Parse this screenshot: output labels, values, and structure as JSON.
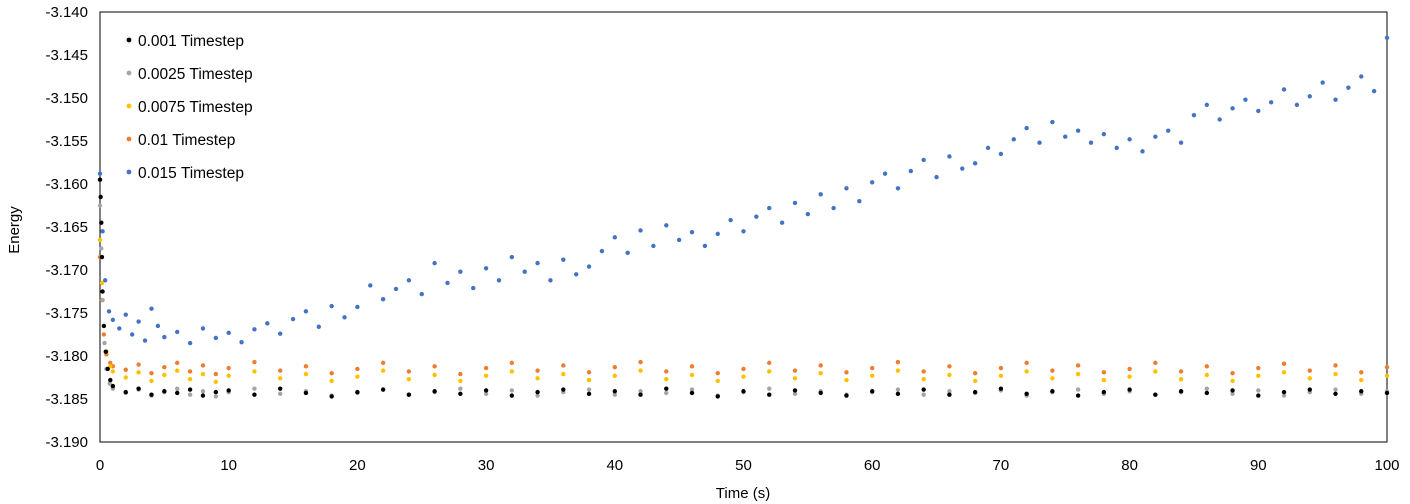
{
  "chart_data": {
    "type": "scatter",
    "title": "",
    "xlabel": "Time (s)",
    "ylabel": "Energy",
    "xlim": [
      0,
      100
    ],
    "ylim": [
      -3.19,
      -3.14
    ],
    "x_ticks": [
      0,
      10,
      20,
      30,
      40,
      50,
      60,
      70,
      80,
      90,
      100
    ],
    "x_tick_labels": [
      "0",
      "10",
      "20",
      "30",
      "40",
      "50",
      "60",
      "70",
      "80",
      "90",
      "100"
    ],
    "y_ticks": [
      -3.14,
      -3.145,
      -3.15,
      -3.155,
      -3.16,
      -3.165,
      -3.17,
      -3.175,
      -3.18,
      -3.185,
      -3.19
    ],
    "y_tick_labels": [
      "-3.140",
      "-3.145",
      "-3.150",
      "-3.155",
      "-3.160",
      "-3.165",
      "-3.170",
      "-3.175",
      "-3.180",
      "-3.185",
      "-3.190"
    ],
    "grid": false,
    "legend_position": "top-left",
    "series": [
      {
        "name": "0.001 Timestep",
        "color": "#000000",
        "x": [
          0,
          0.05,
          0.1,
          0.15,
          0.2,
          0.3,
          0.45,
          0.6,
          0.8,
          1,
          2,
          3,
          4,
          5,
          6,
          7,
          8,
          9,
          10,
          12,
          14,
          16,
          18,
          20,
          22,
          24,
          26,
          28,
          30,
          32,
          34,
          36,
          38,
          40,
          42,
          44,
          46,
          48,
          50,
          52,
          54,
          56,
          58,
          60,
          62,
          64,
          66,
          68,
          70,
          72,
          74,
          76,
          78,
          80,
          82,
          84,
          86,
          88,
          90,
          92,
          94,
          96,
          98,
          100
        ],
        "y": [
          -3.1595,
          -3.1615,
          -3.1645,
          -3.1685,
          -3.1725,
          -3.1765,
          -3.1795,
          -3.1815,
          -3.1828,
          -3.1835,
          -3.1842,
          -3.1838,
          -3.1845,
          -3.1841,
          -3.1843,
          -3.1839,
          -3.1846,
          -3.1842,
          -3.184,
          -3.1845,
          -3.1838,
          -3.1843,
          -3.1847,
          -3.1842,
          -3.1839,
          -3.1845,
          -3.1841,
          -3.1844,
          -3.184,
          -3.1846,
          -3.1842,
          -3.1839,
          -3.1844,
          -3.1841,
          -3.1845,
          -3.1838,
          -3.1843,
          -3.1847,
          -3.1841,
          -3.1845,
          -3.184,
          -3.1843,
          -3.1846,
          -3.1841,
          -3.1844,
          -3.1839,
          -3.1845,
          -3.1842,
          -3.1838,
          -3.1844,
          -3.1841,
          -3.1846,
          -3.1842,
          -3.1839,
          -3.1845,
          -3.1841,
          -3.1843,
          -3.184,
          -3.1846,
          -3.1842,
          -3.1839,
          -3.1844,
          -3.1841,
          -3.1843
        ]
      },
      {
        "name": "0.0025 Timestep",
        "color": "#A5A5A5",
        "x": [
          0,
          0.1,
          0.2,
          0.35,
          0.5,
          0.75,
          1,
          2,
          3,
          4,
          5,
          6,
          7,
          8,
          9,
          10,
          12,
          14,
          16,
          18,
          20,
          22,
          24,
          26,
          28,
          30,
          32,
          34,
          36,
          38,
          40,
          42,
          44,
          46,
          48,
          50,
          52,
          54,
          56,
          58,
          60,
          62,
          64,
          66,
          68,
          70,
          72,
          74,
          76,
          78,
          80,
          82,
          84,
          86,
          88,
          90,
          92,
          94,
          96,
          98,
          100
        ],
        "y": [
          -3.1625,
          -3.1675,
          -3.1735,
          -3.1785,
          -3.1815,
          -3.1832,
          -3.1838,
          -3.1843,
          -3.1839,
          -3.1846,
          -3.1842,
          -3.1838,
          -3.1845,
          -3.1841,
          -3.1847,
          -3.1842,
          -3.1838,
          -3.1844,
          -3.1841,
          -3.1846,
          -3.1843,
          -3.1839,
          -3.1845,
          -3.1842,
          -3.1838,
          -3.1844,
          -3.184,
          -3.1846,
          -3.1842,
          -3.1839,
          -3.1845,
          -3.1841,
          -3.1843,
          -3.1839,
          -3.1846,
          -3.1842,
          -3.1838,
          -3.1844,
          -3.1841,
          -3.1845,
          -3.1842,
          -3.1839,
          -3.1845,
          -3.1841,
          -3.1843,
          -3.184,
          -3.1846,
          -3.1842,
          -3.1839,
          -3.1844,
          -3.1841,
          -3.1845,
          -3.1842,
          -3.1838,
          -3.1844,
          -3.184,
          -3.1846,
          -3.1842,
          -3.1839,
          -3.1844,
          -3.1841
        ]
      },
      {
        "name": "0.0075 Timestep",
        "color": "#FFC000",
        "x": [
          0,
          0.15,
          0.3,
          0.5,
          0.8,
          1,
          2,
          3,
          4,
          5,
          6,
          7,
          8,
          9,
          10,
          12,
          14,
          16,
          18,
          20,
          22,
          24,
          26,
          28,
          30,
          32,
          34,
          36,
          38,
          40,
          42,
          44,
          46,
          48,
          50,
          52,
          54,
          56,
          58,
          60,
          62,
          64,
          66,
          68,
          70,
          72,
          74,
          76,
          78,
          80,
          82,
          84,
          86,
          88,
          90,
          92,
          94,
          96,
          98,
          100
        ],
        "y": [
          -3.1665,
          -3.1715,
          -3.1765,
          -3.1795,
          -3.1812,
          -3.1818,
          -3.1825,
          -3.1819,
          -3.1829,
          -3.1822,
          -3.1817,
          -3.1827,
          -3.1821,
          -3.183,
          -3.1823,
          -3.1818,
          -3.1826,
          -3.1821,
          -3.1829,
          -3.1824,
          -3.1817,
          -3.1827,
          -3.1822,
          -3.1829,
          -3.1823,
          -3.1818,
          -3.1826,
          -3.1821,
          -3.1828,
          -3.1823,
          -3.1817,
          -3.1827,
          -3.1822,
          -3.1829,
          -3.1824,
          -3.1818,
          -3.1826,
          -3.182,
          -3.1828,
          -3.1823,
          -3.1817,
          -3.1827,
          -3.1822,
          -3.1829,
          -3.1823,
          -3.1818,
          -3.1826,
          -3.1821,
          -3.1828,
          -3.1824,
          -3.1818,
          -3.1827,
          -3.1822,
          -3.1829,
          -3.1823,
          -3.1819,
          -3.1826,
          -3.1821,
          -3.1828,
          -3.1823
        ]
      },
      {
        "name": "0.01 Timestep",
        "color": "#ED7D31",
        "x": [
          0,
          0.15,
          0.3,
          0.5,
          0.8,
          1,
          2,
          3,
          4,
          5,
          6,
          7,
          8,
          9,
          10,
          12,
          14,
          16,
          18,
          20,
          22,
          24,
          26,
          28,
          30,
          32,
          34,
          36,
          38,
          40,
          42,
          44,
          46,
          48,
          50,
          52,
          54,
          56,
          58,
          60,
          62,
          64,
          66,
          68,
          70,
          72,
          74,
          76,
          78,
          80,
          82,
          84,
          86,
          88,
          90,
          92,
          94,
          96,
          98,
          100
        ],
        "y": [
          -3.1685,
          -3.1735,
          -3.1775,
          -3.1798,
          -3.1808,
          -3.1812,
          -3.1816,
          -3.181,
          -3.182,
          -3.1813,
          -3.1808,
          -3.1818,
          -3.1811,
          -3.1821,
          -3.1814,
          -3.1807,
          -3.1817,
          -3.1812,
          -3.182,
          -3.1815,
          -3.1808,
          -3.1818,
          -3.1812,
          -3.1821,
          -3.1814,
          -3.1808,
          -3.1817,
          -3.1811,
          -3.1819,
          -3.1813,
          -3.1807,
          -3.1818,
          -3.1812,
          -3.182,
          -3.1815,
          -3.1808,
          -3.1817,
          -3.1811,
          -3.1819,
          -3.1814,
          -3.1807,
          -3.1818,
          -3.1812,
          -3.182,
          -3.1814,
          -3.1808,
          -3.1817,
          -3.1811,
          -3.1819,
          -3.1815,
          -3.1808,
          -3.1818,
          -3.1812,
          -3.182,
          -3.1814,
          -3.1809,
          -3.1817,
          -3.1811,
          -3.1819,
          -3.1813
        ]
      },
      {
        "name": "0.015 Timestep",
        "color": "#4472C4",
        "x": [
          0,
          0.2,
          0.4,
          0.7,
          1,
          1.5,
          2,
          2.5,
          3,
          3.5,
          4,
          4.5,
          5,
          6,
          7,
          8,
          9,
          10,
          11,
          12,
          13,
          14,
          15,
          16,
          17,
          18,
          19,
          20,
          21,
          22,
          23,
          24,
          25,
          26,
          27,
          28,
          29,
          30,
          31,
          32,
          33,
          34,
          35,
          36,
          37,
          38,
          39,
          40,
          41,
          42,
          43,
          44,
          45,
          46,
          47,
          48,
          49,
          50,
          51,
          52,
          53,
          54,
          55,
          56,
          57,
          58,
          59,
          60,
          61,
          62,
          63,
          64,
          65,
          66,
          67,
          68,
          69,
          70,
          71,
          72,
          73,
          74,
          75,
          76,
          77,
          78,
          79,
          80,
          81,
          82,
          83,
          84,
          85,
          86,
          87,
          88,
          89,
          90,
          91,
          92,
          93,
          94,
          95,
          96,
          97,
          98,
          99,
          100
        ],
        "y": [
          -3.1588,
          -3.1655,
          -3.1712,
          -3.1748,
          -3.1758,
          -3.1768,
          -3.1752,
          -3.1775,
          -3.176,
          -3.1782,
          -3.1745,
          -3.1765,
          -3.1778,
          -3.1772,
          -3.1785,
          -3.1768,
          -3.1779,
          -3.1773,
          -3.1784,
          -3.1769,
          -3.1762,
          -3.1774,
          -3.1757,
          -3.1748,
          -3.1766,
          -3.1742,
          -3.1755,
          -3.1743,
          -3.1718,
          -3.1734,
          -3.1722,
          -3.1712,
          -3.1728,
          -3.1692,
          -3.1715,
          -3.1702,
          -3.1721,
          -3.1698,
          -3.1712,
          -3.1685,
          -3.1702,
          -3.1692,
          -3.1712,
          -3.1688,
          -3.1705,
          -3.1696,
          -3.1678,
          -3.1662,
          -3.168,
          -3.1654,
          -3.1672,
          -3.1648,
          -3.1665,
          -3.1656,
          -3.1672,
          -3.1658,
          -3.1642,
          -3.1655,
          -3.1638,
          -3.1628,
          -3.1645,
          -3.1622,
          -3.1635,
          -3.1612,
          -3.1628,
          -3.1605,
          -3.162,
          -3.1598,
          -3.1588,
          -3.1605,
          -3.1585,
          -3.1572,
          -3.1592,
          -3.1568,
          -3.1582,
          -3.1576,
          -3.1558,
          -3.1565,
          -3.1548,
          -3.1535,
          -3.1552,
          -3.1528,
          -3.1545,
          -3.1538,
          -3.1552,
          -3.1542,
          -3.1558,
          -3.1548,
          -3.1562,
          -3.1545,
          -3.1538,
          -3.1552,
          -3.152,
          -3.1508,
          -3.1525,
          -3.1512,
          -3.1502,
          -3.1515,
          -3.1505,
          -3.149,
          -3.1508,
          -3.1498,
          -3.1482,
          -3.1502,
          -3.1488,
          -3.1475,
          -3.1492,
          -3.143
        ]
      }
    ]
  }
}
